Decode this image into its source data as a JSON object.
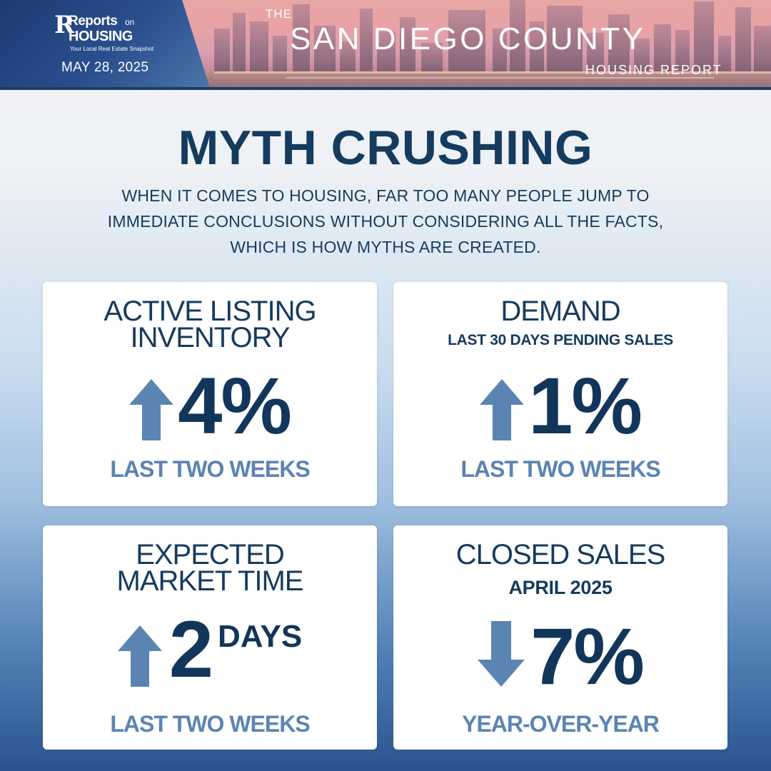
{
  "header": {
    "brand_reports": "Reports",
    "brand_on": "on",
    "brand_housing": "HOUSING",
    "brand_tagline": "Your Local Real Estate Snapshot",
    "date": "MAY 28, 2025",
    "title_prefix": "THE",
    "title_main": "SAN DIEGO COUNTY",
    "title_sub": "HOUSING REPORT"
  },
  "headline": "MYTH CRUSHING",
  "intro": [
    "WHEN IT COMES TO HOUSING, FAR TOO MANY PEOPLE JUMP TO",
    "IMMEDIATE CONCLUSIONS WITHOUT CONSIDERING ALL THE FACTS,",
    "WHICH IS HOW MYTHS ARE CREATED."
  ],
  "cards": [
    {
      "title_line1": "ACTIVE LISTING",
      "title_line2": "INVENTORY",
      "direction": "up",
      "value": "4%",
      "footer": "LAST TWO WEEKS"
    },
    {
      "title": "DEMAND",
      "subtitle": "LAST 30 DAYS PENDING SALES",
      "direction": "up",
      "value": "1%",
      "footer": "LAST TWO WEEKS"
    },
    {
      "title_line1": "EXPECTED",
      "title_line2": "MARKET TIME",
      "direction": "up",
      "value": "2",
      "unit": "DAYS",
      "footer": "LAST TWO WEEKS"
    },
    {
      "title": "CLOSED SALES",
      "subtitle": "APRIL 2025",
      "direction": "down",
      "value": "7%",
      "footer": "YEAR-OVER-YEAR"
    }
  ],
  "colors": {
    "navy": "#153b5e",
    "accent_blue": "#5b84b3",
    "arrow": "#5b84b3"
  },
  "icons": {
    "up": "arrow-up-icon",
    "down": "arrow-down-icon"
  }
}
